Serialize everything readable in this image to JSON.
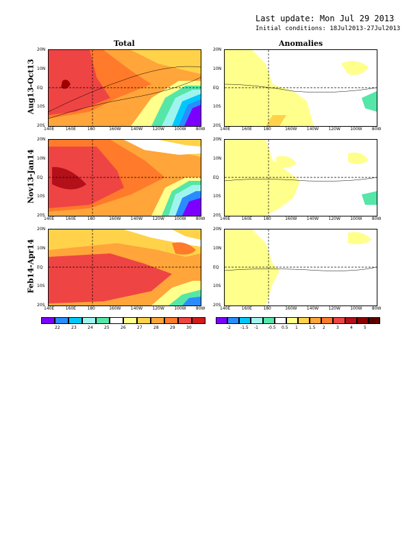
{
  "header": {
    "last_update": "Last update: Mon Jul 29 2013",
    "initial_conditions": "Initial conditions: 18Jul2013-27Jul2013"
  },
  "columns": [
    "Total",
    "Anomalies"
  ],
  "rows": [
    "Aug13-Oct13",
    "Nov13-Jan14",
    "Feb14-Apr14"
  ],
  "lat_labels": [
    "20N",
    "10N",
    "EQ",
    "10S",
    "20S"
  ],
  "lon_labels": [
    "140E",
    "160E",
    "180",
    "160W",
    "140W",
    "120W",
    "100W",
    "80W"
  ],
  "total_scale": {
    "labels": [
      "22",
      "23",
      "24",
      "25",
      "26",
      "27",
      "28",
      "29",
      "30"
    ],
    "colors": [
      "#7c00ff",
      "#2a8cff",
      "#00c8ff",
      "#9ff5ee",
      "#55e6a8",
      "#ffffff",
      "#ffff8c",
      "#ffd24a",
      "#ffa53a",
      "#ff7a2a",
      "#ef4444",
      "#d11a1a"
    ]
  },
  "anom_scale": {
    "labels": [
      "-2",
      "-1.5",
      "-1",
      "-0.5",
      "0.5",
      "1",
      "1.5",
      "2",
      "3",
      "4",
      "5"
    ],
    "colors": [
      "#7c00ff",
      "#2a8cff",
      "#00c8ff",
      "#9ff5ee",
      "#55e6a8",
      "#ffffff",
      "#ffff8c",
      "#ffd24a",
      "#ffa53a",
      "#ff7a2a",
      "#ef4444",
      "#b3101a",
      "#8b0000",
      "#5a0000"
    ]
  }
}
